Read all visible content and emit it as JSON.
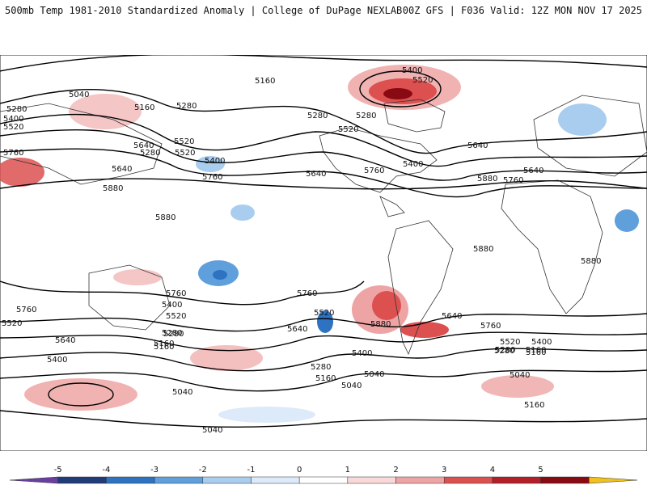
{
  "header": {
    "title": "500mb Temp 1981-2010 Standardized Anomaly | College of DuPage NEXLAB",
    "run_info": "00Z GFS | F036 Valid: 12Z MON NOV 17 2025"
  },
  "colorbar": {
    "ticks": [
      "-5",
      "-4",
      "-3",
      "-2",
      "-1",
      "0",
      "1",
      "2",
      "3",
      "4",
      "5"
    ],
    "colors": [
      "#6a3fa0",
      "#1f3c78",
      "#2e72c2",
      "#5fa0dc",
      "#a9cdee",
      "#ddeafa",
      "#ffffff",
      "#f8d8d8",
      "#eea4a4",
      "#dc5050",
      "#b41e28",
      "#8a0a14",
      "#f2c21a"
    ]
  },
  "contour_labels": [
    "5400",
    "5520",
    "5160",
    "5040",
    "5280",
    "5160",
    "5280",
    "5280",
    "5400",
    "5520",
    "5760",
    "5640",
    "5280",
    "5520",
    "5400",
    "5640",
    "5760",
    "5880",
    "5880",
    "5520",
    "5280",
    "5640",
    "5760",
    "5400",
    "5880",
    "5640",
    "5760",
    "5880",
    "5880",
    "5760",
    "5760",
    "5520",
    "5640",
    "5400",
    "5280",
    "5160",
    "5640",
    "5520",
    "5280",
    "5160",
    "5040",
    "5400",
    "5280",
    "5160",
    "5040",
    "5040",
    "5880",
    "5640",
    "5760",
    "5520",
    "5400",
    "5280",
    "5160",
    "5040",
    "5160",
    "5040",
    "5520",
    "5760",
    "5400",
    "5280",
    "5640",
    "5520",
    "5160"
  ]
}
